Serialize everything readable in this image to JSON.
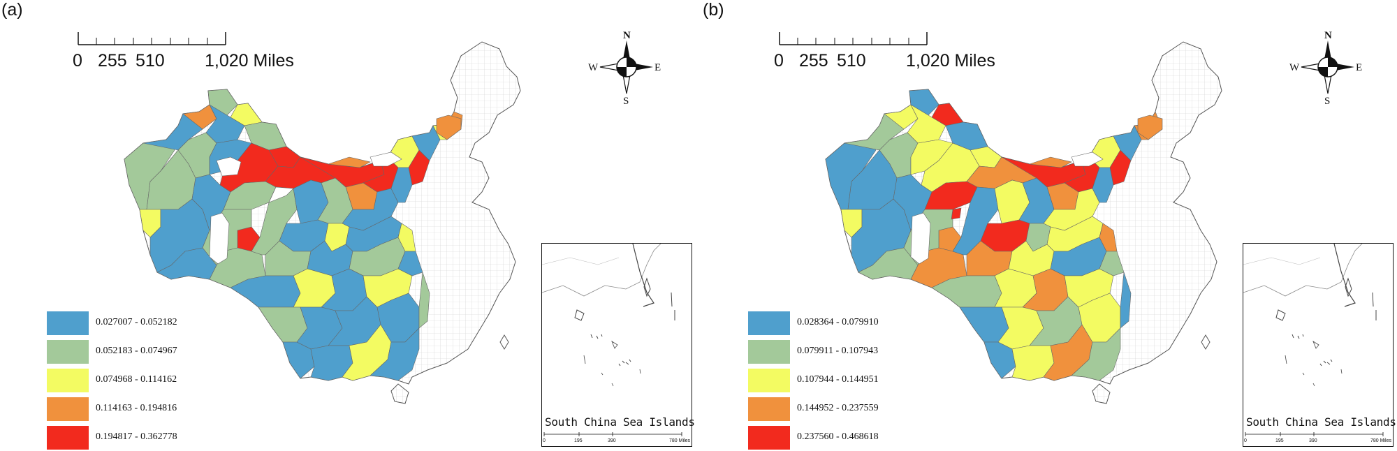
{
  "panels": [
    {
      "id": "a",
      "label": "(a)",
      "scale_bar": {
        "ticks": [
          "0",
          "255",
          "510",
          "1,020 Miles"
        ]
      },
      "compass": {
        "north": "N",
        "south": "S",
        "east": "E",
        "west": "W"
      },
      "legend": [
        {
          "range": "0.027007 - 0.052182",
          "color": "#4f9fcd"
        },
        {
          "range": "0.052183 - 0.074967",
          "color": "#a3c99a"
        },
        {
          "range": "0.074968 - 0.114162",
          "color": "#f3fb62"
        },
        {
          "range": "0.114163 - 0.194816",
          "color": "#f0913d"
        },
        {
          "range": "0.194817 - 0.362778",
          "color": "#f22a1e"
        }
      ],
      "inset": {
        "title": "South China Sea Islands",
        "scale_ticks": [
          "0",
          "195",
          "390",
          "780 Miles"
        ]
      }
    },
    {
      "id": "b",
      "label": "(b)",
      "scale_bar": {
        "ticks": [
          "0",
          "255",
          "510",
          "1,020 Miles"
        ]
      },
      "compass": {
        "north": "N",
        "south": "S",
        "east": "E",
        "west": "W"
      },
      "legend": [
        {
          "range": "0.028364 - 0.079910",
          "color": "#4f9fcd"
        },
        {
          "range": "0.079911 - 0.107943",
          "color": "#a3c99a"
        },
        {
          "range": "0.107944 - 0.144951",
          "color": "#f3fb62"
        },
        {
          "range": "0.144952 - 0.237559",
          "color": "#f0913d"
        },
        {
          "range": "0.237560 - 0.468618",
          "color": "#f22a1e"
        }
      ],
      "inset": {
        "title": "South China Sea Islands",
        "scale_ticks": [
          "0",
          "195",
          "390",
          "780 Miles"
        ]
      }
    }
  ]
}
